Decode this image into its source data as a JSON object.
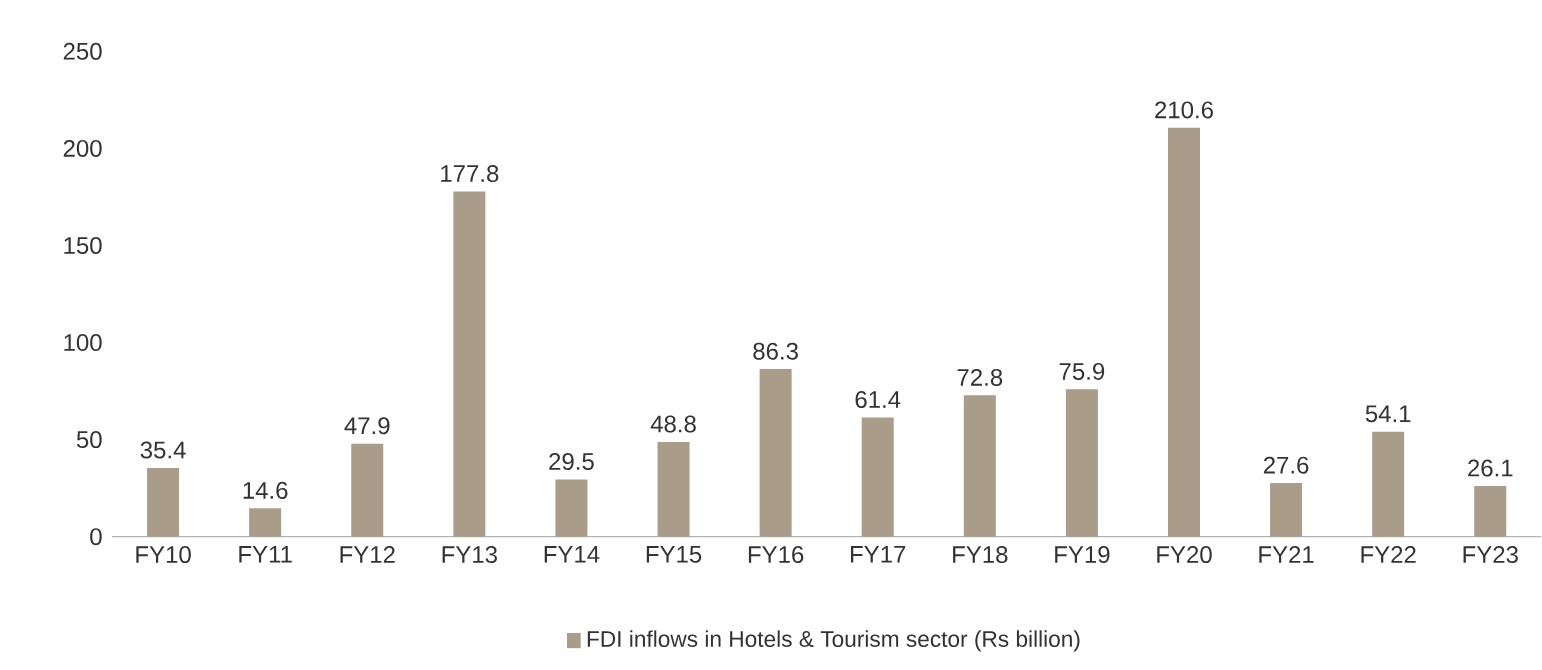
{
  "chart_data": {
    "type": "bar",
    "categories": [
      "FY10",
      "FY11",
      "FY12",
      "FY13",
      "FY14",
      "FY15",
      "FY16",
      "FY17",
      "FY18",
      "FY19",
      "FY20",
      "FY21",
      "FY22",
      "FY23"
    ],
    "series": [
      {
        "name": "FDI inflows in Hotels & Tourism sector (Rs billion)",
        "color": "#a99c88",
        "values": [
          35.4,
          14.6,
          47.9,
          177.8,
          29.5,
          48.8,
          86.3,
          61.4,
          72.8,
          75.9,
          210.6,
          27.6,
          54.1,
          26.1
        ]
      }
    ],
    "ylim": [
      0,
      250
    ],
    "yticks": [
      0,
      50,
      100,
      150,
      200,
      250
    ],
    "data_labels": true,
    "legend": "bottom",
    "grid": false
  }
}
